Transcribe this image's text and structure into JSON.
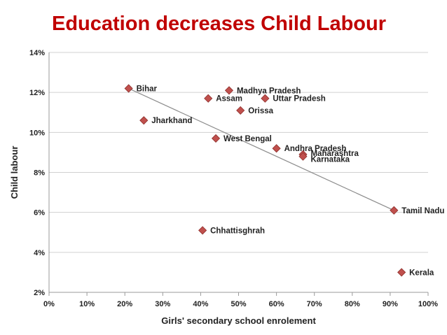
{
  "chart_data": {
    "type": "scatter",
    "title": "Education decreases Child Labour",
    "xlabel": "Girls' secondary school enrolement",
    "ylabel": "Child labour",
    "xlim": [
      0,
      100
    ],
    "ylim": [
      2,
      14
    ],
    "x_ticks": [
      "0%",
      "10%",
      "20%",
      "30%",
      "40%",
      "50%",
      "60%",
      "70%",
      "80%",
      "90%",
      "100%"
    ],
    "y_ticks": [
      "2%",
      "4%",
      "6%",
      "8%",
      "10%",
      "12%",
      "14%"
    ],
    "grid": true,
    "marker_color": "#c0504d",
    "trendline": {
      "x": [
        21,
        91
      ],
      "y": [
        12.2,
        6.1
      ]
    },
    "points": [
      {
        "label": "Bihar",
        "x": 21,
        "y": 12.2
      },
      {
        "label": "Madhya Pradesh",
        "x": 47.5,
        "y": 12.1
      },
      {
        "label": "Assam",
        "x": 42,
        "y": 11.7
      },
      {
        "label": "Uttar Pradesh",
        "x": 57,
        "y": 11.7
      },
      {
        "label": "Orissa",
        "x": 50.5,
        "y": 11.1
      },
      {
        "label": "Jharkhand",
        "x": 25,
        "y": 10.6
      },
      {
        "label": "West Bengal",
        "x": 44,
        "y": 9.7
      },
      {
        "label": "Andhra Pradesh",
        "x": 60,
        "y": 9.2
      },
      {
        "label": "Maharashtra",
        "x": 67,
        "y": 8.9
      },
      {
        "label": "Karnataka",
        "x": 67,
        "y": 8.8
      },
      {
        "label": "Tamil Nadu",
        "x": 91,
        "y": 6.1
      },
      {
        "label": "Chhattisghrah",
        "x": 40.5,
        "y": 5.1
      },
      {
        "label": "Kerala",
        "x": 93,
        "y": 3.0
      }
    ]
  }
}
